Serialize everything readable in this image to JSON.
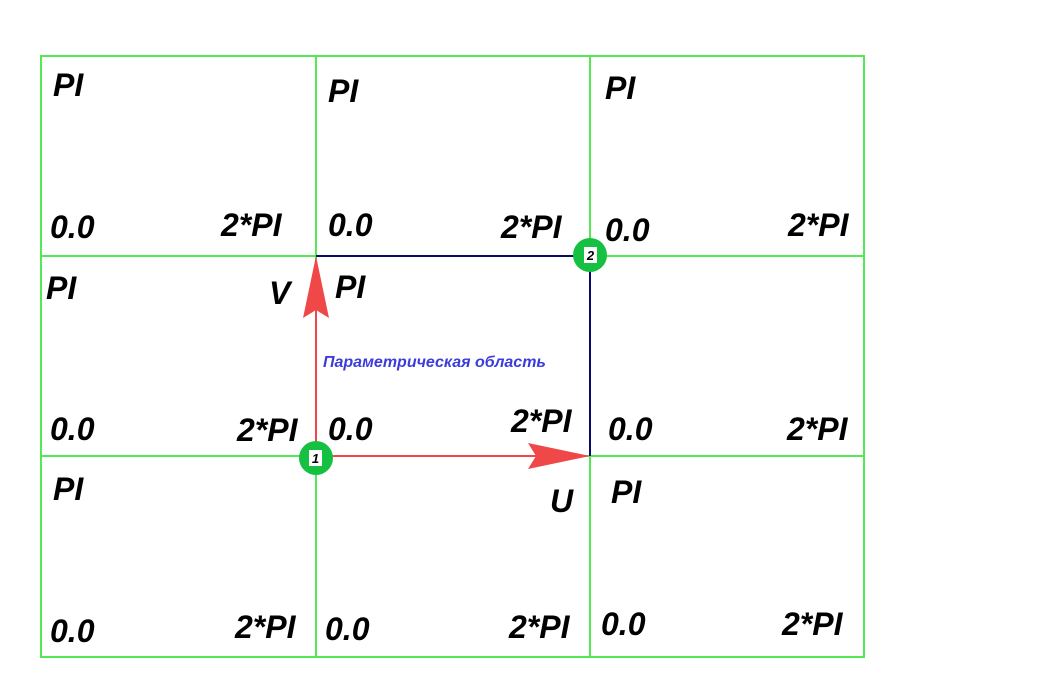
{
  "colors": {
    "grid": "#55e855",
    "domain": "#0a0a6e",
    "arrow": "#f04848",
    "point": "#16c040",
    "caption": "#3c3cdc"
  },
  "labels": {
    "pi": "PI",
    "zero": "0.0",
    "two_pi": "2*PI"
  },
  "axes": {
    "u": "U",
    "v": "V"
  },
  "caption": "Параметрическая область",
  "points": [
    "1",
    "2"
  ]
}
